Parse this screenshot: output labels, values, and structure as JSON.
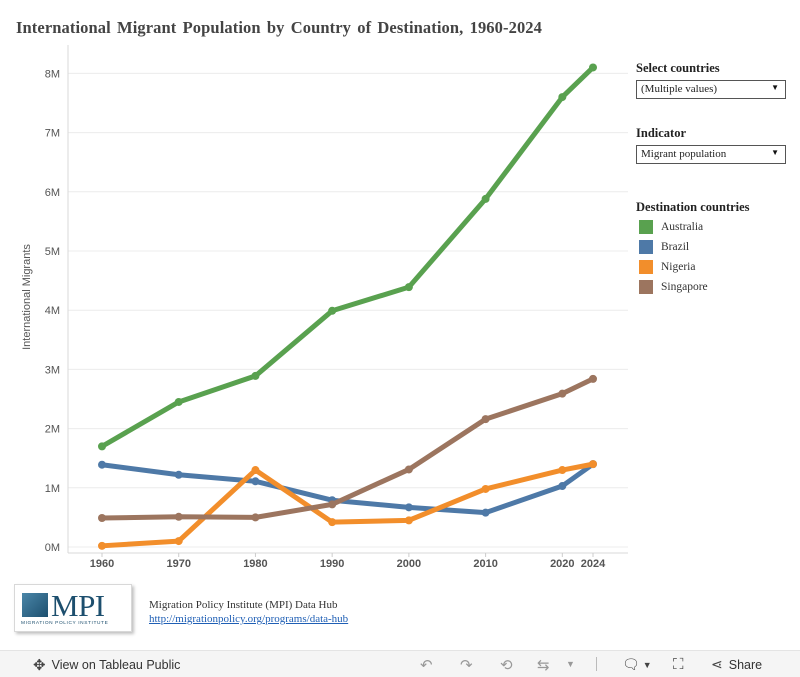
{
  "chart_data": {
    "type": "line",
    "title": "International Migrant Population by Country of Destination, 1960-2024",
    "ylabel": "International Migrants",
    "xlabel": "",
    "x": [
      1960,
      1970,
      1980,
      1990,
      2000,
      2010,
      2020,
      2024
    ],
    "x_tick_labels": [
      "1960",
      "1970",
      "1980",
      "1990",
      "2000",
      "2010",
      "2020",
      "2024"
    ],
    "ylim": [
      0,
      8400000
    ],
    "y_ticks": [
      0,
      1000000,
      2000000,
      3000000,
      4000000,
      5000000,
      6000000,
      7000000,
      8000000
    ],
    "y_tick_labels": [
      "0M",
      "1M",
      "2M",
      "3M",
      "4M",
      "5M",
      "6M",
      "7M",
      "8M"
    ],
    "grid": "horizontal",
    "legend_position": "right",
    "series": [
      {
        "name": "Australia",
        "color": "#59a14f",
        "values": [
          1700000,
          2450000,
          2890000,
          3990000,
          4390000,
          5880000,
          7600000,
          8100000
        ]
      },
      {
        "name": "Brazil",
        "color": "#4e79a7",
        "values": [
          1390000,
          1220000,
          1110000,
          790000,
          670000,
          580000,
          1030000,
          1400000
        ]
      },
      {
        "name": "Nigeria",
        "color": "#f28e2b",
        "values": [
          20000,
          100000,
          1300000,
          420000,
          450000,
          980000,
          1300000,
          1400000
        ]
      },
      {
        "name": "Singapore",
        "color": "#9c755f",
        "values": [
          490000,
          510000,
          500000,
          720000,
          1310000,
          2160000,
          2590000,
          2840000
        ]
      }
    ]
  },
  "filters": {
    "countries": {
      "title": "Select countries",
      "value": "(Multiple values)"
    },
    "indicator": {
      "title": "Indicator",
      "value": "Migrant population"
    }
  },
  "legend": {
    "title": "Destination countries"
  },
  "source": {
    "name": "Migration Policy Institute (MPI) Data Hub",
    "link": "http://migrationpolicy.org/programs/data-hub"
  },
  "logo": {
    "text": "MPI",
    "subtext": "MIGRATION POLICY INSTITUTE"
  },
  "toolbar": {
    "view_label": "View on Tableau Public",
    "share_label": "Share"
  }
}
